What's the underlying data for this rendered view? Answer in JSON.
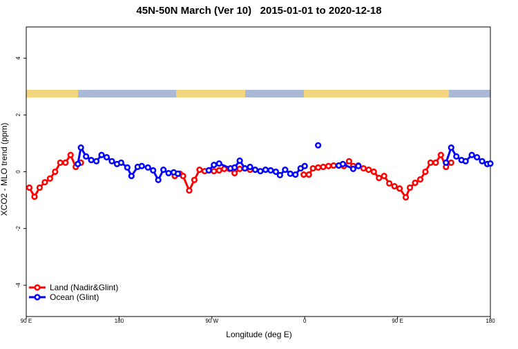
{
  "chart_data": {
    "type": "line",
    "title": "45N-50N March (Ver 10)   2015-01-01 to 2020-12-18",
    "x_label": "Longitude (deg E)",
    "y_label": "XCO2 - MLO trend (ppm)",
    "xlim": [
      90,
      540
    ],
    "ylim": [
      -5.1,
      5.1
    ],
    "xticks": [
      {
        "value": 90,
        "label": "90 E"
      },
      {
        "value": 180,
        "label": "180"
      },
      {
        "value": 270,
        "label": "90 W"
      },
      {
        "value": 360,
        "label": "0"
      },
      {
        "value": 450,
        "label": "90 E"
      },
      {
        "value": 540,
        "label": "180"
      }
    ],
    "yticks": [
      -4,
      -2,
      0,
      2,
      4
    ],
    "legend": "bottom-left",
    "series": [
      {
        "name": "Land (Nadir&Glint)",
        "color": "#ff0000",
        "x": [
          93,
          98,
          103,
          108,
          113,
          118,
          123,
          128,
          133,
          138,
          143,
          null,
          234,
          239,
          242,
          248,
          253,
          258,
          263,
          267,
          272,
          277,
          282,
          287,
          292,
          297,
          302,
          307,
          null,
          359,
          364,
          368,
          373,
          378,
          383,
          388,
          393,
          398,
          403,
          407,
          412,
          417,
          422,
          427,
          432,
          437,
          442,
          447,
          452,
          458,
          462,
          467,
          472,
          477,
          482,
          487,
          492,
          497,
          502
        ],
        "values": [
          -0.56,
          -0.88,
          -0.56,
          -0.37,
          -0.24,
          0,
          0.32,
          0.32,
          0.59,
          0.17,
          0.32,
          null,
          -0.15,
          -0.07,
          -0.15,
          -0.66,
          -0.29,
          0.07,
          0.02,
          0.05,
          0.02,
          0.05,
          0.1,
          0.1,
          -0.05,
          0.1,
          0.12,
          0.07,
          null,
          -0.1,
          -0.1,
          0.12,
          0.15,
          0.17,
          0.2,
          0.22,
          0.22,
          0.2,
          0.37,
          0.2,
          0.22,
          0.12,
          0.07,
          0,
          -0.22,
          -0.15,
          -0.41,
          -0.51,
          -0.59,
          -0.9,
          -0.56,
          -0.39,
          -0.27,
          0,
          0.32,
          0.32,
          0.59,
          0.17,
          0.32
        ]
      },
      {
        "name": "Ocean (Glint)",
        "color": "#0000ff",
        "x": [
          140,
          143,
          148,
          153,
          158,
          163,
          168,
          173,
          178,
          182,
          188,
          192,
          198,
          202,
          208,
          213,
          218,
          223,
          228,
          233,
          237,
          null,
          267,
          272,
          277,
          288,
          292,
          297,
          302,
          307,
          312,
          317,
          322,
          327,
          332,
          336,
          341,
          346,
          351,
          356,
          360,
          null,
          373,
          null,
          393,
          397,
          407,
          412,
          null,
          497,
          502,
          507,
          512,
          516,
          522,
          527,
          532,
          537,
          540
        ],
        "values": [
          0.27,
          0.85,
          0.54,
          0.41,
          0.37,
          0.59,
          0.51,
          0.37,
          0.27,
          0.32,
          0.15,
          -0.15,
          0.17,
          0.2,
          0.15,
          0.05,
          -0.29,
          0.07,
          -0.05,
          -0.02,
          -0.07,
          null,
          0.05,
          0.24,
          0.29,
          0.12,
          0.15,
          0.39,
          0.12,
          0.17,
          0.07,
          0.02,
          0.07,
          0.05,
          0,
          -0.12,
          0.07,
          -0.07,
          -0.1,
          0.12,
          0.2,
          null,
          0.93,
          null,
          0.22,
          0.27,
          0.1,
          0.2,
          null,
          0.32,
          0.85,
          0.54,
          0.41,
          0.37,
          0.59,
          0.51,
          0.37,
          0.27,
          0.29
        ]
      }
    ]
  }
}
